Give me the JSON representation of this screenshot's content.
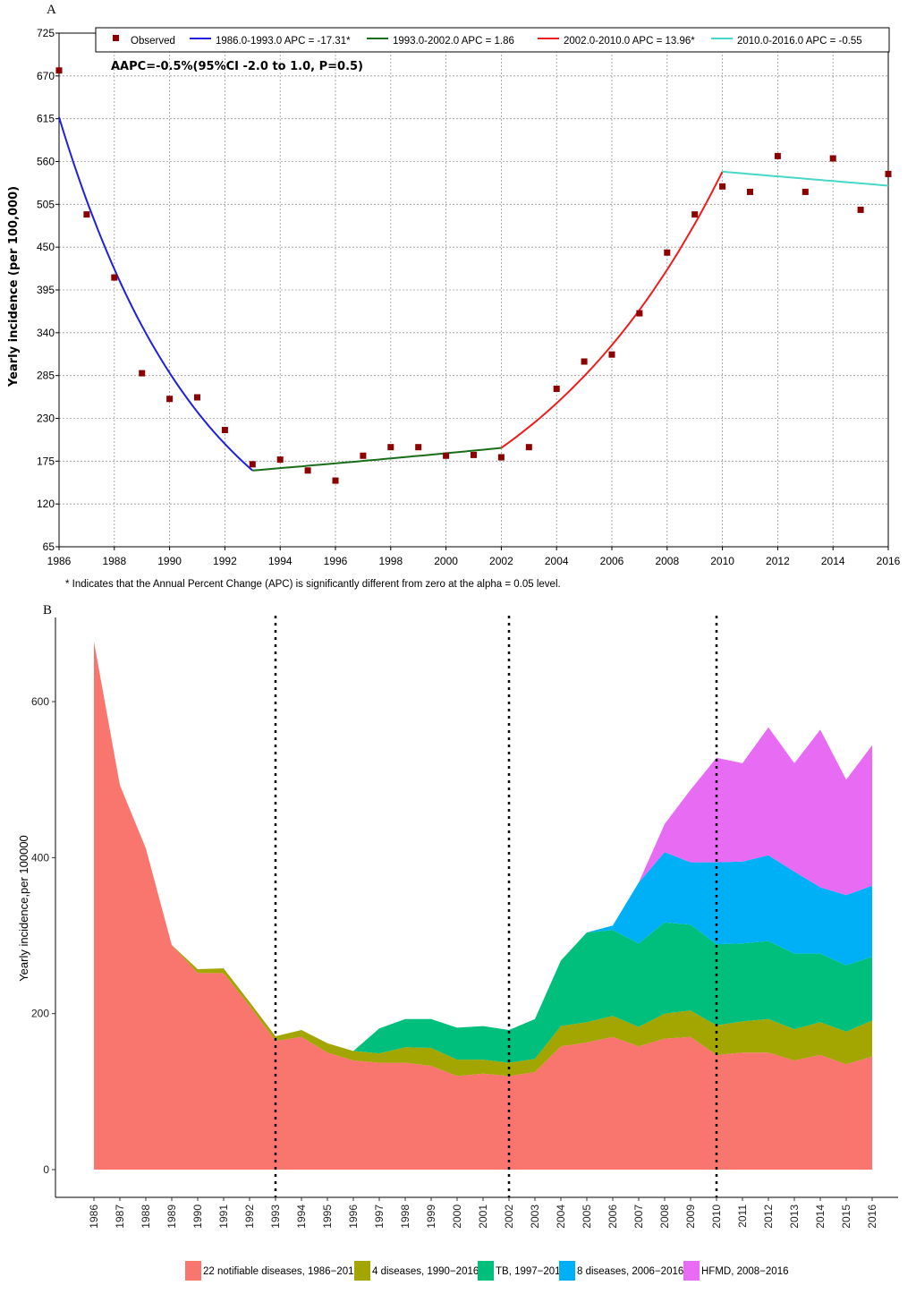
{
  "chart_data": [
    {
      "panel": "A",
      "type": "scatter",
      "title": "",
      "ylabel": "Yearly incidence (per 100,000)",
      "xlabel": "",
      "xlim": [
        1986,
        2016
      ],
      "ylim": [
        65,
        725
      ],
      "yticks": [
        65,
        120,
        175,
        230,
        285,
        340,
        395,
        450,
        505,
        560,
        615,
        670,
        725
      ],
      "xticks": [
        1986,
        1988,
        1990,
        1992,
        1994,
        1996,
        1998,
        2000,
        2002,
        2004,
        2006,
        2008,
        2010,
        2012,
        2014,
        2016
      ],
      "grid": true,
      "legend_position": "top",
      "annotation": "AAPC=-0.5%(95%CI -2.0 to 1.0, P=0.5)",
      "footnote": "* Indicates that the Annual Percent Change (APC) is significantly different from zero at the alpha = 0.05 level.",
      "observed": {
        "name": "Observed",
        "color": "#8b0000",
        "x": [
          1986,
          1987,
          1988,
          1989,
          1990,
          1991,
          1992,
          1993,
          1994,
          1995,
          1996,
          1997,
          1998,
          1999,
          2000,
          2001,
          2002,
          2003,
          2004,
          2005,
          2006,
          2007,
          2008,
          2009,
          2010,
          2011,
          2012,
          2013,
          2014,
          2015,
          2016
        ],
        "y": [
          677,
          492,
          411,
          288,
          255,
          257,
          215,
          171,
          177,
          163,
          150,
          182,
          193,
          193,
          182,
          183,
          180,
          193,
          268,
          303,
          312,
          365,
          443,
          492,
          528,
          521,
          567,
          521,
          564,
          498,
          544
        ]
      },
      "segments": [
        {
          "name": "1986.0-1993.0 APC = -17.31*",
          "color": "#1f1fe0",
          "start": 1986,
          "end": 1993,
          "y_start": 617,
          "y_end": 163,
          "apc": -17.31
        },
        {
          "name": "1993.0-2002.0 APC =  1.86",
          "color": "#1a6e1a",
          "start": 1993,
          "end": 2002,
          "y_start": 163,
          "y_end": 192,
          "apc": 1.86
        },
        {
          "name": "2002.0-2010.0 APC = 13.96*",
          "color": "#ee1c1c",
          "start": 2002,
          "end": 2010,
          "y_start": 192,
          "y_end": 547,
          "apc": 13.96
        },
        {
          "name": "2010.0-2016.0 APC = -0.55",
          "color": "#48d8c8",
          "start": 2010,
          "end": 2016,
          "y_start": 547,
          "y_end": 529,
          "apc": -0.55
        }
      ]
    },
    {
      "panel": "B",
      "type": "area",
      "title": "",
      "ylabel": "Yearly incidence,per 100000",
      "xlabel": "",
      "ylim": [
        -30,
        730
      ],
      "yticks": [
        0,
        200,
        400,
        600
      ],
      "grid": false,
      "legend_position": "bottom",
      "breakpoints": [
        1993,
        2002,
        2010
      ],
      "categories": [
        1986,
        1987,
        1988,
        1989,
        1990,
        1991,
        1992,
        1993,
        1994,
        1995,
        1996,
        1997,
        1998,
        1999,
        2000,
        2001,
        2002,
        2003,
        2004,
        2005,
        2006,
        2007,
        2008,
        2009,
        2010,
        2011,
        2012,
        2013,
        2014,
        2015,
        2016
      ],
      "series": [
        {
          "name": "22 notifiable diseases, 1986−2016",
          "color": "#f8766d",
          "values": [
            677,
            493,
            412,
            288,
            252,
            252,
            210,
            165,
            170,
            150,
            140,
            137,
            137,
            133,
            120,
            123,
            120,
            125,
            158,
            163,
            170,
            158,
            168,
            170,
            147,
            150,
            150,
            140,
            147,
            135,
            145
          ]
        },
        {
          "name": "4 diseases, 1990−2016",
          "color": "#a3a500",
          "values": [
            0,
            0,
            0,
            0,
            5,
            6,
            5,
            6,
            9,
            12,
            12,
            12,
            20,
            23,
            21,
            18,
            17,
            17,
            26,
            26,
            27,
            25,
            32,
            34,
            38,
            40,
            43,
            40,
            42,
            42,
            46
          ]
        },
        {
          "name": "TB, 1997−2016",
          "color": "#00bf7d",
          "values": [
            0,
            0,
            0,
            0,
            0,
            0,
            0,
            0,
            0,
            0,
            0,
            32,
            36,
            37,
            41,
            43,
            42,
            51,
            84,
            115,
            110,
            107,
            117,
            110,
            104,
            100,
            100,
            97,
            88,
            85,
            82
          ]
        },
        {
          "name": "8 diseases, 2006−2016",
          "color": "#00b0f6",
          "values": [
            0,
            0,
            0,
            0,
            0,
            0,
            0,
            0,
            0,
            0,
            0,
            0,
            0,
            0,
            0,
            0,
            0,
            0,
            0,
            0,
            6,
            78,
            90,
            80,
            105,
            105,
            110,
            105,
            85,
            90,
            91
          ]
        },
        {
          "name": "HFMD, 2008−2016",
          "color": "#e76bf3",
          "values": [
            0,
            0,
            0,
            0,
            0,
            0,
            0,
            0,
            0,
            0,
            0,
            0,
            0,
            0,
            0,
            0,
            0,
            0,
            0,
            0,
            0,
            0,
            36,
            93,
            134,
            126,
            164,
            139,
            202,
            148,
            180
          ]
        }
      ]
    }
  ],
  "panels": {
    "a_label": "A",
    "b_label": "B"
  }
}
